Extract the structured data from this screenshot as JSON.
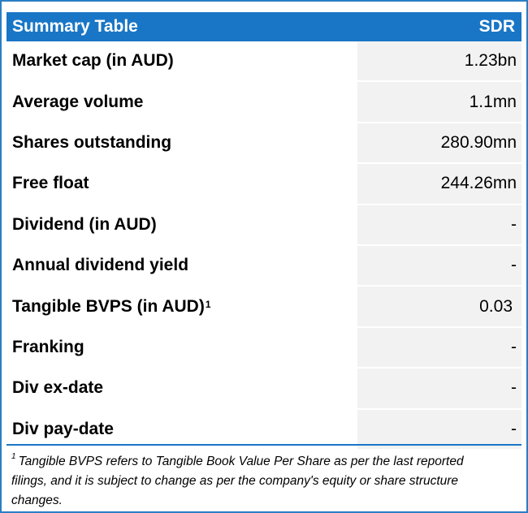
{
  "header": {
    "title": "Summary Table",
    "ticker": "SDR"
  },
  "rows": [
    {
      "label": "Market cap (in AUD)",
      "value": "1.23bn"
    },
    {
      "label": "Average volume",
      "value": "1.1mn"
    },
    {
      "label": "Shares outstanding",
      "value": "280.90mn"
    },
    {
      "label": "Free float",
      "value": "244.26mn"
    },
    {
      "label": "Dividend (in AUD)",
      "value": "-"
    },
    {
      "label": "Annual dividend yield",
      "value": "-"
    },
    {
      "label": "Tangible BVPS (in AUD)",
      "sup": "1",
      "value": "0.03"
    },
    {
      "label": "Franking",
      "value": "-"
    },
    {
      "label": "Div ex-date",
      "value": "-"
    },
    {
      "label": "Div pay-date",
      "value": "-"
    }
  ],
  "footnote": {
    "marker": "1",
    "text": "Tangible BVPS refers to Tangible Book Value Per Share as per the last reported filings, and it is subject to change as per the company's equity or share structure changes."
  },
  "colors": {
    "header_bg": "#1976c6",
    "border": "#2a7ec4",
    "value_bg": "#f2f2f2"
  }
}
